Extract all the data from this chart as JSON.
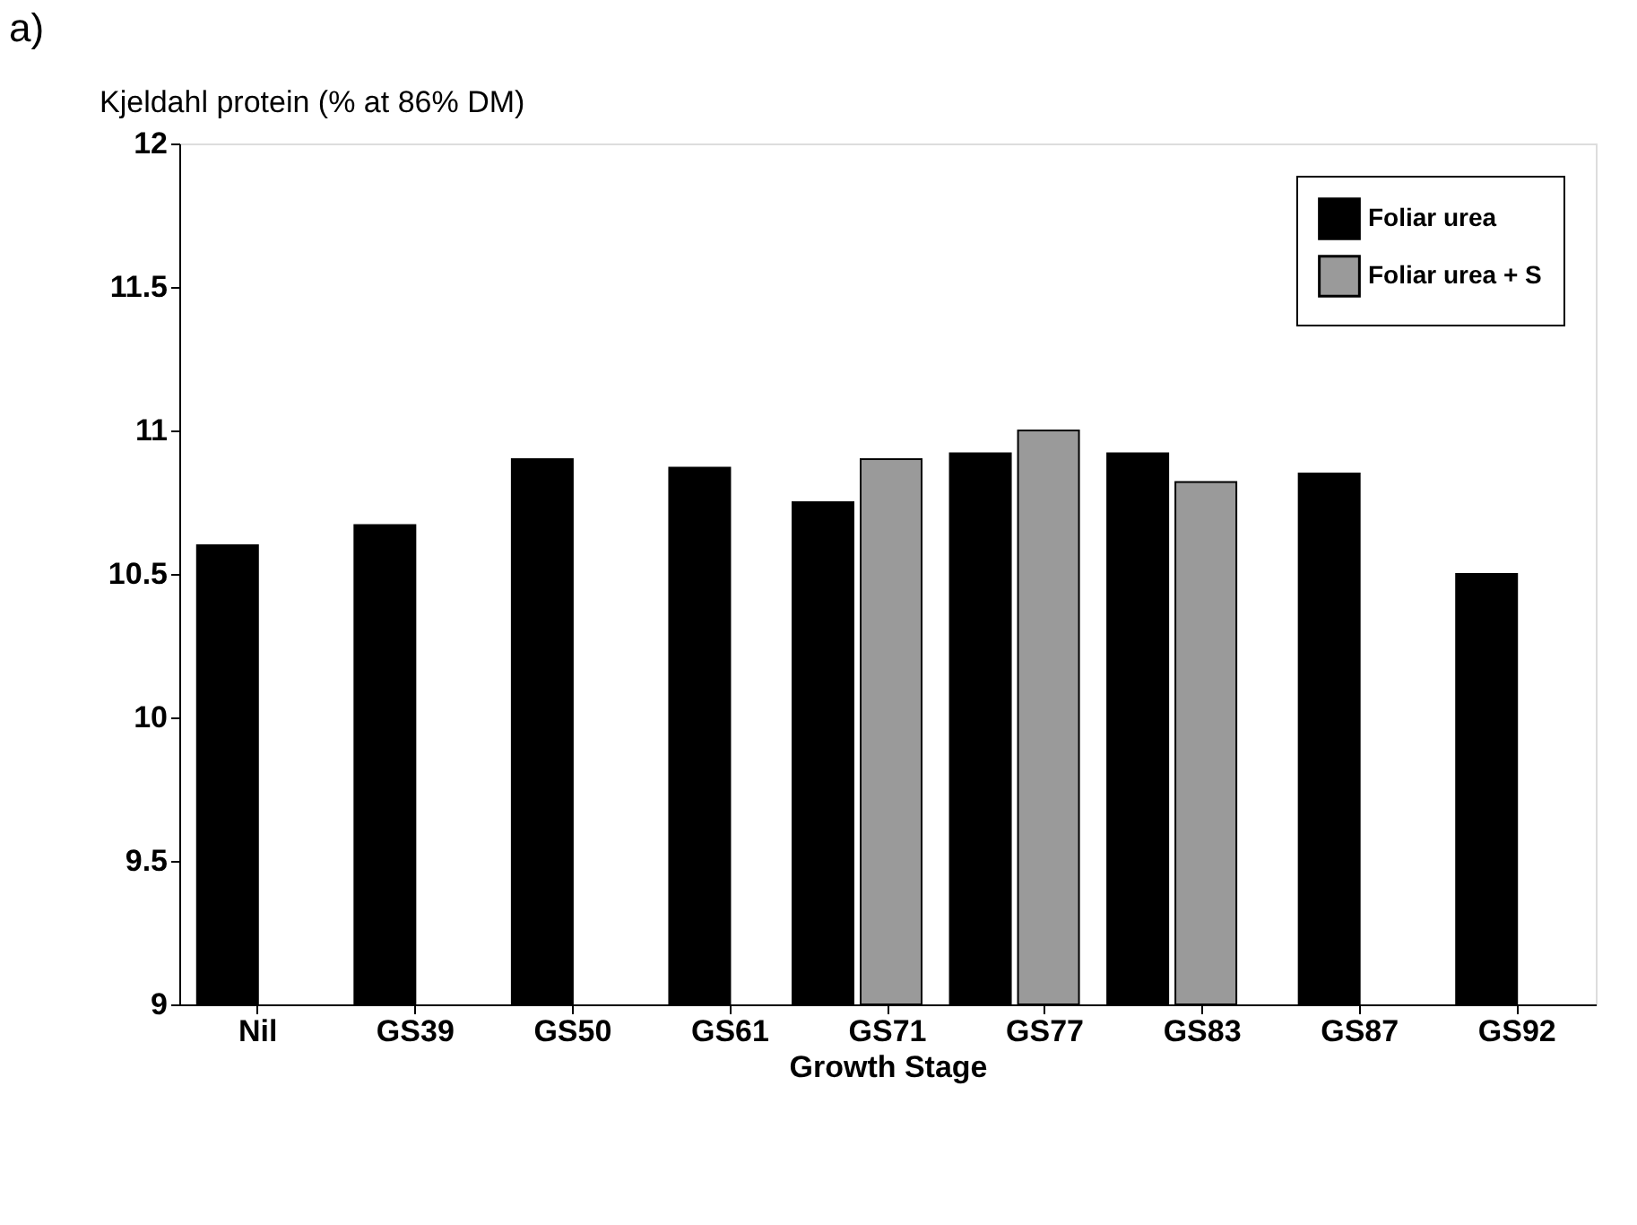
{
  "chart_data": {
    "type": "bar",
    "ylabel": "Kjeldahl protein (% at 86% DM)",
    "xlabel": "Growth Stage",
    "annotations": [
      "a)"
    ],
    "categories": [
      "Nil",
      "GS39",
      "GS50",
      "GS61",
      "GS71",
      "GS77",
      "GS83",
      "GS87",
      "GS92"
    ],
    "series": [
      {
        "name": "Foliar urea",
        "color": "#000000",
        "values": [
          10.6,
          10.67,
          10.9,
          10.87,
          10.75,
          10.92,
          10.92,
          10.85,
          10.5
        ]
      },
      {
        "name": "Foliar urea + S",
        "color": "#9a9a9a",
        "values": [
          null,
          null,
          null,
          null,
          10.9,
          11.0,
          10.82,
          null,
          null
        ]
      }
    ],
    "ylim": [
      9,
      12
    ],
    "yticks": [
      9,
      9.5,
      10,
      10.5,
      11,
      11.5,
      12
    ],
    "grid": false,
    "legend": "top right"
  }
}
